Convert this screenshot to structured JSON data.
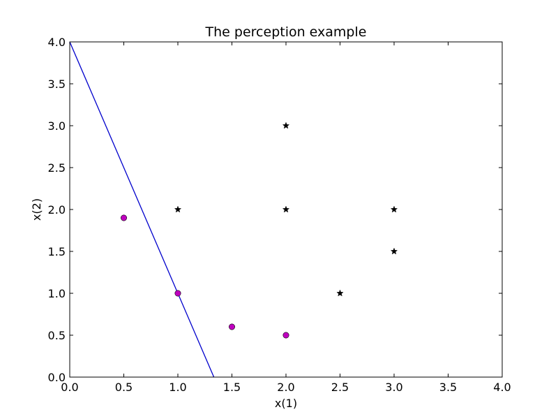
{
  "chart_data": {
    "type": "scatter",
    "title": "The perception example",
    "xlabel": "x(1)",
    "ylabel": "x(2)",
    "xlim": [
      0,
      4
    ],
    "ylim": [
      0,
      4
    ],
    "xticks": [
      "0.0",
      "0.5",
      "1.0",
      "1.5",
      "2.0",
      "2.5",
      "3.0",
      "3.5",
      "4.0"
    ],
    "yticks": [
      "0.0",
      "0.5",
      "1.0",
      "1.5",
      "2.0",
      "2.5",
      "3.0",
      "3.5",
      "4.0"
    ],
    "grid": false,
    "series": [
      {
        "marker": "circle",
        "color": "#bf00bf",
        "points": [
          [
            0.5,
            1.9
          ],
          [
            1.0,
            1.0
          ],
          [
            1.5,
            0.6
          ],
          [
            2.0,
            0.5
          ]
        ]
      },
      {
        "marker": "star",
        "color": "#000000",
        "points": [
          [
            1.0,
            2.0
          ],
          [
            2.0,
            3.0
          ],
          [
            2.0,
            2.0
          ],
          [
            3.0,
            2.0
          ],
          [
            3.0,
            1.5
          ],
          [
            2.5,
            1.0
          ]
        ]
      }
    ],
    "line": {
      "color": "#0000cc",
      "points": [
        [
          0.0,
          4.0
        ],
        [
          1.333,
          0.0
        ]
      ]
    }
  }
}
